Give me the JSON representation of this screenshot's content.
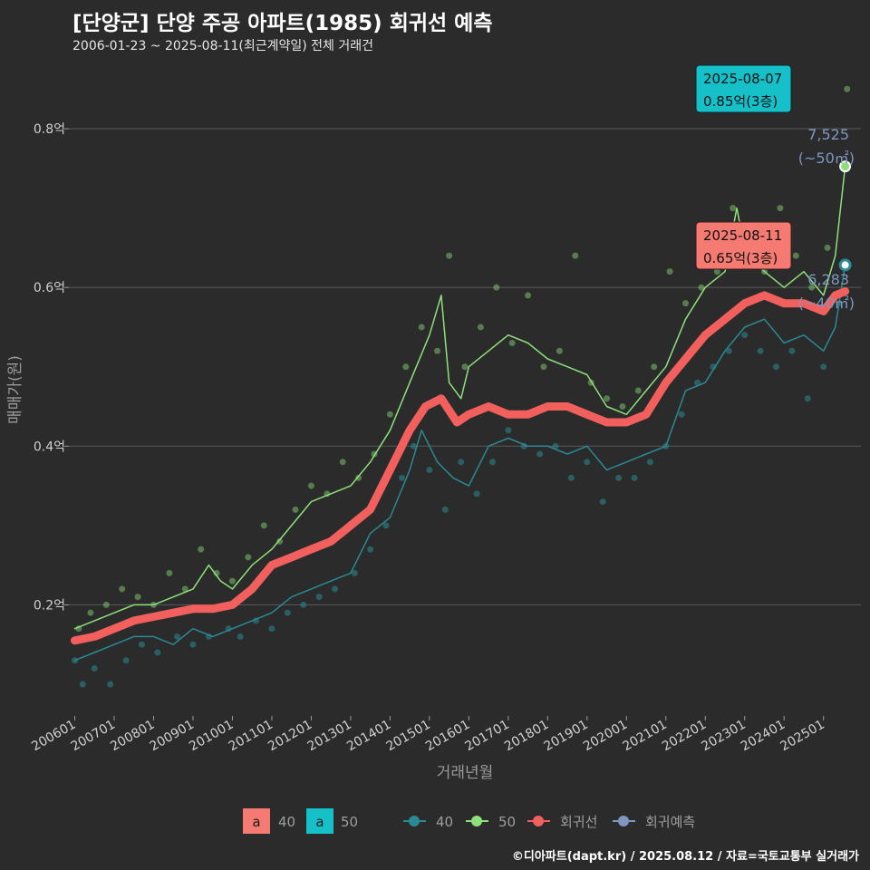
{
  "header": {
    "title": "[단양군] 단양 주공 아파트(1985) 회귀선 예측",
    "subtitle": "2006-01-23 ~ 2025-08-11(최근계약일) 전체 거래건"
  },
  "credit": "©디아파트(dapt.kr) / 2025.08.12 / 자료=국토교통부 실거래가",
  "colors": {
    "s40": "#2a8a94",
    "s50": "#8ee07a",
    "regression": "#f2605e",
    "forecast": "#7f97c0",
    "annot40": "#f47a72",
    "annot50": "#15c0c8",
    "grid": "#5a5a5a"
  },
  "chart_data": {
    "type": "line",
    "title": "[단양군] 단양 주공 아파트(1985) 회귀선 예측",
    "xlabel": "거래년월",
    "ylabel": "매매가(원)",
    "xlim": [
      2005.85,
      2025.95
    ],
    "ylim": [
      0.06,
      0.88
    ],
    "yticks": [
      0.2,
      0.4,
      0.6,
      0.8
    ],
    "ytick_labels": [
      "0.2억",
      "0.4억",
      "0.6억",
      "0.8억"
    ],
    "xtick_labels": [
      "200601",
      "200701",
      "200801",
      "200901",
      "201001",
      "201101",
      "201201",
      "201301",
      "201401",
      "201501",
      "201601",
      "201701",
      "201801",
      "201901",
      "202001",
      "202101",
      "202201",
      "202301",
      "202401",
      "202501"
    ],
    "series": [
      {
        "name": "40",
        "x": [
          2006.0,
          2006.5,
          2007.0,
          2007.5,
          2008.0,
          2008.5,
          2009.0,
          2009.5,
          2010.0,
          2010.5,
          2011.0,
          2011.5,
          2012.0,
          2012.5,
          2013.0,
          2013.5,
          2014.0,
          2014.5,
          2014.8,
          2015.2,
          2015.6,
          2016.0,
          2016.5,
          2017.0,
          2017.5,
          2018.0,
          2018.5,
          2019.0,
          2019.5,
          2020.0,
          2020.5,
          2021.0,
          2021.5,
          2022.0,
          2022.5,
          2023.0,
          2023.5,
          2024.0,
          2024.5,
          2025.0,
          2025.3,
          2025.55
        ],
        "values": [
          0.13,
          0.14,
          0.15,
          0.16,
          0.16,
          0.15,
          0.17,
          0.16,
          0.17,
          0.18,
          0.19,
          0.21,
          0.22,
          0.23,
          0.24,
          0.29,
          0.31,
          0.37,
          0.42,
          0.38,
          0.36,
          0.35,
          0.4,
          0.41,
          0.4,
          0.4,
          0.39,
          0.4,
          0.37,
          0.38,
          0.39,
          0.4,
          0.47,
          0.48,
          0.52,
          0.55,
          0.56,
          0.53,
          0.54,
          0.52,
          0.55,
          0.6283
        ]
      },
      {
        "name": "50",
        "x": [
          2006.0,
          2006.5,
          2007.0,
          2007.5,
          2008.0,
          2008.5,
          2009.0,
          2009.4,
          2009.7,
          2010.0,
          2010.5,
          2011.0,
          2011.5,
          2012.0,
          2012.5,
          2013.0,
          2013.5,
          2014.0,
          2014.5,
          2015.0,
          2015.3,
          2015.5,
          2015.8,
          2016.0,
          2016.5,
          2017.0,
          2017.5,
          2018.0,
          2018.5,
          2019.0,
          2019.5,
          2020.0,
          2020.5,
          2021.0,
          2021.5,
          2022.0,
          2022.5,
          2022.8,
          2023.0,
          2023.5,
          2024.0,
          2024.5,
          2025.0,
          2025.3,
          2025.55
        ],
        "values": [
          0.17,
          0.18,
          0.19,
          0.2,
          0.2,
          0.21,
          0.22,
          0.25,
          0.23,
          0.22,
          0.25,
          0.27,
          0.3,
          0.33,
          0.34,
          0.35,
          0.38,
          0.42,
          0.48,
          0.54,
          0.59,
          0.48,
          0.46,
          0.5,
          0.52,
          0.54,
          0.53,
          0.51,
          0.5,
          0.49,
          0.45,
          0.44,
          0.47,
          0.5,
          0.56,
          0.6,
          0.62,
          0.7,
          0.65,
          0.62,
          0.6,
          0.62,
          0.59,
          0.64,
          0.7525
        ]
      },
      {
        "name": "회귀선",
        "x": [
          2006.0,
          2006.5,
          2007.0,
          2007.5,
          2008.0,
          2008.5,
          2009.0,
          2009.5,
          2010.0,
          2010.5,
          2011.0,
          2011.5,
          2012.0,
          2012.5,
          2013.0,
          2013.5,
          2014.0,
          2014.5,
          2014.9,
          2015.3,
          2015.7,
          2016.0,
          2016.5,
          2017.0,
          2017.5,
          2018.0,
          2018.5,
          2019.0,
          2019.5,
          2020.0,
          2020.5,
          2021.0,
          2021.5,
          2022.0,
          2022.5,
          2023.0,
          2023.5,
          2024.0,
          2024.5,
          2025.0,
          2025.3,
          2025.55
        ],
        "values": [
          0.155,
          0.16,
          0.17,
          0.18,
          0.185,
          0.19,
          0.195,
          0.195,
          0.2,
          0.22,
          0.25,
          0.26,
          0.27,
          0.28,
          0.3,
          0.32,
          0.37,
          0.42,
          0.45,
          0.46,
          0.43,
          0.44,
          0.45,
          0.44,
          0.44,
          0.45,
          0.45,
          0.44,
          0.43,
          0.43,
          0.44,
          0.48,
          0.51,
          0.54,
          0.56,
          0.58,
          0.59,
          0.58,
          0.58,
          0.57,
          0.59,
          0.595
        ]
      }
    ],
    "scatter40": [
      [
        2006.0,
        0.13
      ],
      [
        2006.2,
        0.1
      ],
      [
        2006.5,
        0.12
      ],
      [
        2006.9,
        0.1
      ],
      [
        2007.3,
        0.13
      ],
      [
        2007.7,
        0.15
      ],
      [
        2008.1,
        0.14
      ],
      [
        2008.6,
        0.16
      ],
      [
        2009.0,
        0.15
      ],
      [
        2009.4,
        0.16
      ],
      [
        2009.9,
        0.17
      ],
      [
        2010.2,
        0.16
      ],
      [
        2010.6,
        0.18
      ],
      [
        2011.0,
        0.17
      ],
      [
        2011.4,
        0.19
      ],
      [
        2011.8,
        0.2
      ],
      [
        2012.2,
        0.21
      ],
      [
        2012.6,
        0.22
      ],
      [
        2013.1,
        0.24
      ],
      [
        2013.5,
        0.27
      ],
      [
        2013.9,
        0.3
      ],
      [
        2014.3,
        0.36
      ],
      [
        2014.6,
        0.4
      ],
      [
        2015.0,
        0.37
      ],
      [
        2015.4,
        0.32
      ],
      [
        2015.8,
        0.38
      ],
      [
        2016.2,
        0.34
      ],
      [
        2016.6,
        0.38
      ],
      [
        2017.0,
        0.42
      ],
      [
        2017.4,
        0.4
      ],
      [
        2017.8,
        0.39
      ],
      [
        2018.2,
        0.4
      ],
      [
        2018.6,
        0.36
      ],
      [
        2019.0,
        0.38
      ],
      [
        2019.4,
        0.33
      ],
      [
        2019.8,
        0.36
      ],
      [
        2020.2,
        0.36
      ],
      [
        2020.6,
        0.38
      ],
      [
        2021.0,
        0.4
      ],
      [
        2021.4,
        0.44
      ],
      [
        2021.8,
        0.48
      ],
      [
        2022.2,
        0.5
      ],
      [
        2022.6,
        0.52
      ],
      [
        2023.0,
        0.54
      ],
      [
        2023.4,
        0.52
      ],
      [
        2023.8,
        0.5
      ],
      [
        2024.2,
        0.52
      ],
      [
        2024.6,
        0.46
      ],
      [
        2025.0,
        0.5
      ],
      [
        2025.4,
        0.58
      ]
    ],
    "scatter50": [
      [
        2006.1,
        0.17
      ],
      [
        2006.4,
        0.19
      ],
      [
        2006.8,
        0.2
      ],
      [
        2007.2,
        0.22
      ],
      [
        2007.6,
        0.21
      ],
      [
        2008.0,
        0.2
      ],
      [
        2008.4,
        0.24
      ],
      [
        2008.8,
        0.22
      ],
      [
        2009.2,
        0.27
      ],
      [
        2009.6,
        0.24
      ],
      [
        2010.0,
        0.23
      ],
      [
        2010.4,
        0.26
      ],
      [
        2010.8,
        0.3
      ],
      [
        2011.2,
        0.28
      ],
      [
        2011.6,
        0.32
      ],
      [
        2012.0,
        0.35
      ],
      [
        2012.4,
        0.34
      ],
      [
        2012.8,
        0.38
      ],
      [
        2013.2,
        0.36
      ],
      [
        2013.6,
        0.39
      ],
      [
        2014.0,
        0.44
      ],
      [
        2014.4,
        0.5
      ],
      [
        2014.8,
        0.55
      ],
      [
        2015.2,
        0.52
      ],
      [
        2015.5,
        0.64
      ],
      [
        2015.9,
        0.5
      ],
      [
        2016.3,
        0.55
      ],
      [
        2016.7,
        0.6
      ],
      [
        2017.1,
        0.53
      ],
      [
        2017.5,
        0.59
      ],
      [
        2017.9,
        0.5
      ],
      [
        2018.3,
        0.52
      ],
      [
        2018.7,
        0.64
      ],
      [
        2019.1,
        0.48
      ],
      [
        2019.5,
        0.46
      ],
      [
        2019.9,
        0.45
      ],
      [
        2020.3,
        0.47
      ],
      [
        2020.7,
        0.5
      ],
      [
        2021.1,
        0.62
      ],
      [
        2021.5,
        0.58
      ],
      [
        2021.9,
        0.6
      ],
      [
        2022.3,
        0.62
      ],
      [
        2022.7,
        0.7
      ],
      [
        2023.1,
        0.66
      ],
      [
        2023.5,
        0.62
      ],
      [
        2023.9,
        0.7
      ],
      [
        2024.3,
        0.64
      ],
      [
        2024.7,
        0.6
      ],
      [
        2025.1,
        0.65
      ],
      [
        2025.6,
        0.85
      ]
    ],
    "annotations": [
      {
        "date": "2025-08-07",
        "price": "0.85억(3층)",
        "series": "50"
      },
      {
        "date": "2025-08-11",
        "price": "0.65억(3층)",
        "series": "40"
      }
    ],
    "last_values": [
      {
        "series": "50",
        "value": "7,525",
        "area": "(~50㎡)"
      },
      {
        "series": "40",
        "value": "6,283",
        "area": "(~40㎡)"
      }
    ],
    "legend": {
      "fill": [
        {
          "key": "a",
          "label": "40"
        },
        {
          "key": "a",
          "label": "50"
        }
      ],
      "lines": [
        {
          "label": "40"
        },
        {
          "label": "50"
        },
        {
          "label": "회귀선"
        },
        {
          "label": "회귀예측"
        }
      ]
    }
  }
}
